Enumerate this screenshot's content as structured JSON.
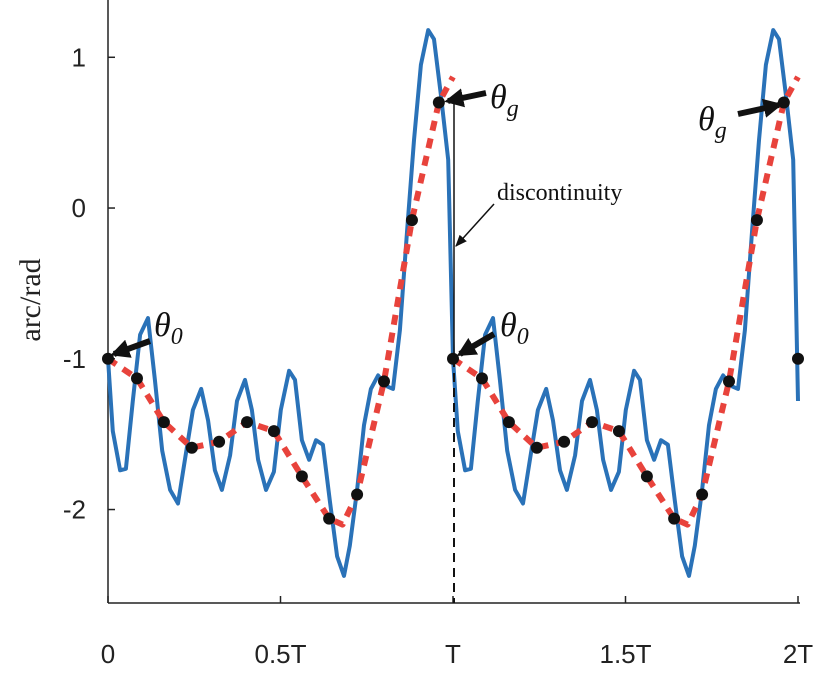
{
  "chart_data": {
    "type": "line",
    "ylabel": "arc/rad",
    "xlim": [
      0,
      2
    ],
    "ylim": [
      -2.62,
      1.38
    ],
    "xticks": [
      0,
      {
        "value": 0.5,
        "label": "0.5T"
      },
      {
        "value": 1,
        "label": "T"
      },
      {
        "value": 1.5,
        "label": "1.5T"
      },
      {
        "value": 2,
        "label": "2T"
      }
    ],
    "yticks": [
      -2,
      -1,
      0,
      1
    ],
    "series": [
      {
        "color": "#2a72b8",
        "style": "solid",
        "x": [
          0,
          0.014,
          0.035,
          0.052,
          0.072,
          0.093,
          0.116,
          0.136,
          0.157,
          0.18,
          0.203,
          0.223,
          0.246,
          0.27,
          0.29,
          0.31,
          0.33,
          0.354,
          0.374,
          0.397,
          0.417,
          0.435,
          0.458,
          0.481,
          0.501,
          0.525,
          0.542,
          0.562,
          0.583,
          0.603,
          0.623,
          0.643,
          0.664,
          0.684,
          0.701,
          0.722,
          0.742,
          0.762,
          0.783,
          0.806,
          0.826,
          0.846,
          0.867,
          0.887,
          0.907,
          0.928,
          0.945,
          0.965,
          0.986,
          1.0,
          1.014,
          1.035,
          1.052,
          1.072,
          1.093,
          1.116,
          1.136,
          1.157,
          1.18,
          1.203,
          1.223,
          1.246,
          1.27,
          1.29,
          1.31,
          1.33,
          1.354,
          1.374,
          1.397,
          1.417,
          1.435,
          1.458,
          1.481,
          1.501,
          1.525,
          1.542,
          1.562,
          1.583,
          1.603,
          1.623,
          1.643,
          1.664,
          1.684,
          1.701,
          1.722,
          1.742,
          1.762,
          1.783,
          1.806,
          1.826,
          1.846,
          1.867,
          1.887,
          1.907,
          1.928,
          1.945,
          1.965,
          1.986,
          2.0
        ],
        "values": [
          -1,
          -1.48,
          -1.74,
          -1.73,
          -1.28,
          -0.84,
          -0.73,
          -1.14,
          -1.61,
          -1.87,
          -1.96,
          -1.67,
          -1.34,
          -1.2,
          -1.41,
          -1.74,
          -1.87,
          -1.64,
          -1.28,
          -1.14,
          -1.34,
          -1.67,
          -1.87,
          -1.75,
          -1.34,
          -1.08,
          -1.14,
          -1.54,
          -1.67,
          -1.54,
          -1.57,
          -1.94,
          -2.31,
          -2.44,
          -2.24,
          -1.87,
          -1.44,
          -1.2,
          -1.11,
          -1.18,
          -1.2,
          -0.81,
          -0.15,
          0.45,
          0.95,
          1.18,
          1.12,
          0.75,
          0.32,
          -1,
          -1.48,
          -1.74,
          -1.73,
          -1.28,
          -0.84,
          -0.73,
          -1.14,
          -1.61,
          -1.87,
          -1.96,
          -1.67,
          -1.34,
          -1.2,
          -1.41,
          -1.74,
          -1.87,
          -1.64,
          -1.28,
          -1.14,
          -1.34,
          -1.67,
          -1.87,
          -1.75,
          -1.34,
          -1.08,
          -1.14,
          -1.54,
          -1.67,
          -1.54,
          -1.57,
          -1.94,
          -2.31,
          -2.44,
          -2.24,
          -1.87,
          -1.44,
          -1.2,
          -1.11,
          -1.18,
          -1.2,
          -0.81,
          -0.15,
          0.45,
          0.95,
          1.18,
          1.12,
          0.75,
          0.32,
          -1.28
        ]
      },
      {
        "color": "#e8433c",
        "style": "dashed",
        "x": [
          0,
          0.084,
          0.162,
          0.243,
          0.322,
          0.403,
          0.481,
          0.562,
          0.641,
          0.68,
          0.722,
          0.8,
          0.881,
          0.959,
          1.0,
          1.0,
          1.0,
          1.084,
          1.162,
          1.243,
          1.322,
          1.403,
          1.481,
          1.562,
          1.641,
          1.68,
          1.722,
          1.8,
          1.881,
          1.959,
          2.0
        ],
        "values": [
          -1,
          -1.13,
          -1.42,
          -1.59,
          -1.55,
          -1.42,
          -1.48,
          -1.78,
          -2.06,
          -2.1,
          -1.9,
          -1.15,
          -0.08,
          0.7,
          0.87,
          null,
          -1,
          -1.13,
          -1.42,
          -1.59,
          -1.55,
          -1.42,
          -1.48,
          -1.78,
          -2.06,
          -2.1,
          -1.9,
          -1.15,
          -0.08,
          0.7,
          0.87
        ]
      },
      {
        "color": "#111111",
        "style": "markers",
        "x": [
          0,
          0.084,
          0.162,
          0.243,
          0.322,
          0.403,
          0.481,
          0.562,
          0.641,
          0.722,
          0.8,
          0.881,
          0.959,
          1.0,
          1.084,
          1.162,
          1.243,
          1.322,
          1.403,
          1.481,
          1.562,
          1.641,
          1.722,
          1.8,
          1.881,
          1.959,
          2.0
        ],
        "values": [
          -1,
          -1.13,
          -1.42,
          -1.59,
          -1.55,
          -1.42,
          -1.48,
          -1.78,
          -2.06,
          -1.9,
          -1.15,
          -0.08,
          0.7,
          -1,
          -1.13,
          -1.42,
          -1.59,
          -1.55,
          -1.42,
          -1.48,
          -1.78,
          -2.06,
          -1.9,
          -1.15,
          -0.08,
          0.7,
          -1
        ]
      }
    ],
    "annotations": [
      {
        "text": "θ",
        "sub": "0"
      },
      {
        "text": "θ",
        "sub": "g"
      },
      {
        "text": "discontinuity"
      },
      {
        "text": "θ",
        "sub": "0"
      },
      {
        "text": "θ",
        "sub": "g"
      }
    ]
  }
}
